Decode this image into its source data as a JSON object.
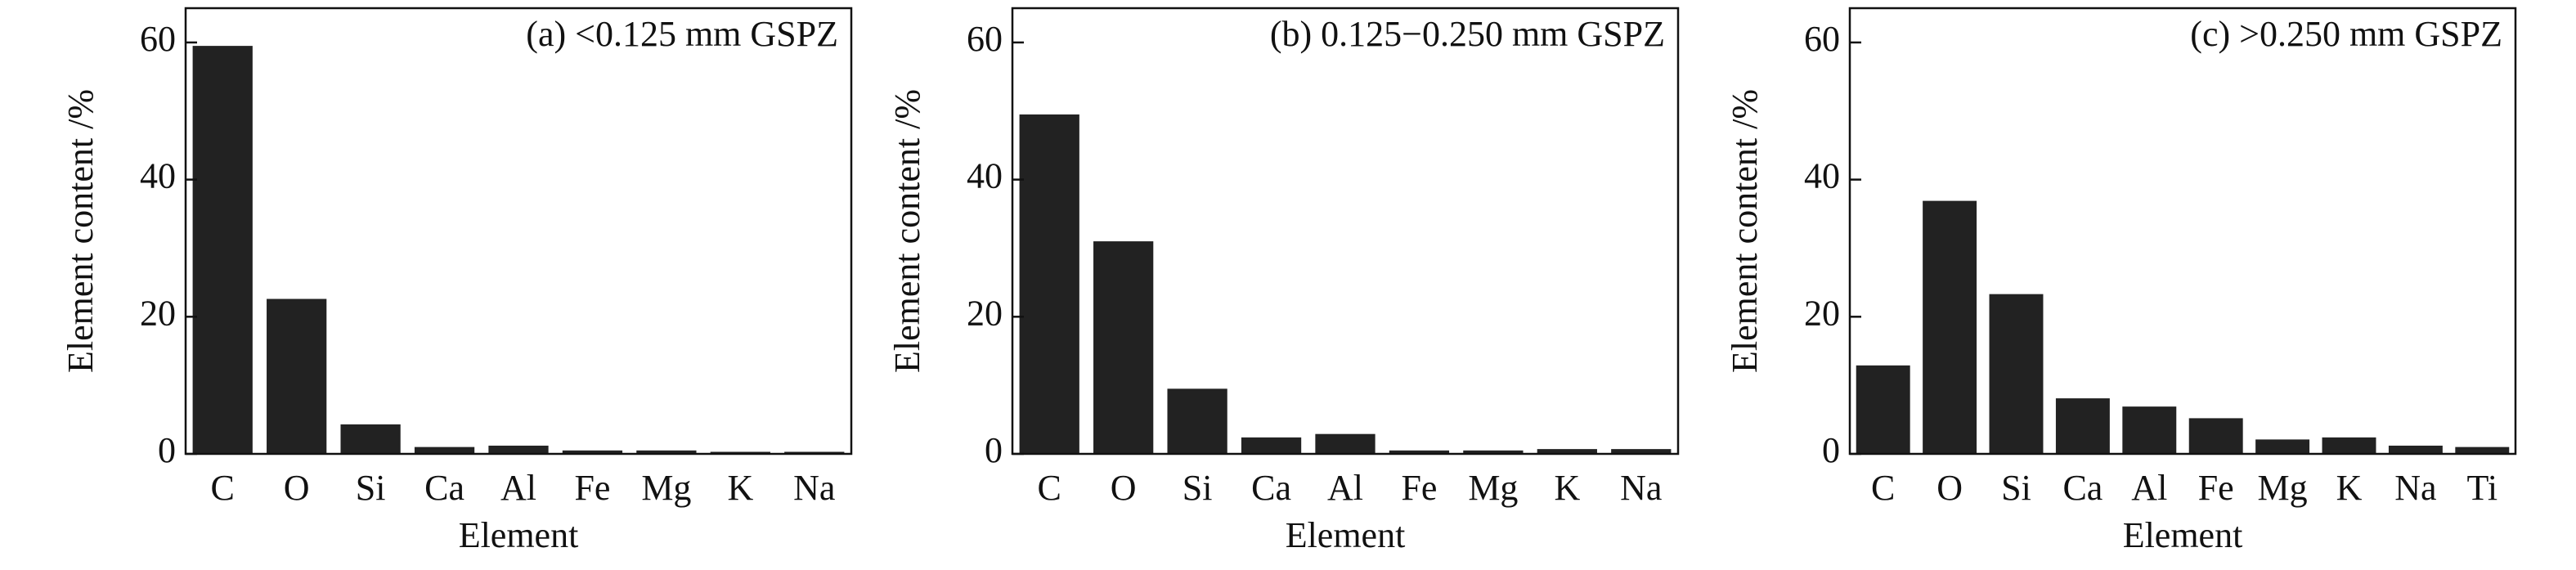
{
  "chart_data": [
    {
      "type": "bar",
      "title": "(a) <0.125 mm GSPZ",
      "xlabel": "Element",
      "ylabel": "Element content /%",
      "categories": [
        "C",
        "O",
        "Si",
        "Ca",
        "Al",
        "Fe",
        "Mg",
        "K",
        "Na"
      ],
      "values": [
        59.5,
        22.6,
        4.3,
        1.0,
        1.2,
        0.5,
        0.5,
        0.3,
        0.3
      ],
      "color": "#222222",
      "ylim": [
        0,
        65
      ],
      "yticks": [
        0,
        20,
        40,
        60
      ],
      "grid": false
    },
    {
      "type": "bar",
      "title": "(b) 0.125−0.250 mm GSPZ",
      "xlabel": "Element",
      "ylabel": "Element content /%",
      "categories": [
        "C",
        "O",
        "Si",
        "Ca",
        "Al",
        "Fe",
        "Mg",
        "K",
        "Na"
      ],
      "values": [
        49.5,
        31.0,
        9.5,
        2.4,
        2.9,
        0.5,
        0.5,
        0.7,
        0.7
      ],
      "color": "#222222",
      "ylim": [
        0,
        65
      ],
      "yticks": [
        0,
        20,
        40,
        60
      ],
      "grid": false
    },
    {
      "type": "bar",
      "title": "(c) >0.250 mm GSPZ",
      "xlabel": "Element",
      "ylabel": "Element content /%",
      "categories": [
        "C",
        "O",
        "Si",
        "Ca",
        "Al",
        "Fe",
        "Mg",
        "K",
        "Na",
        "Ti"
      ],
      "values": [
        12.9,
        36.9,
        23.3,
        8.1,
        6.9,
        5.2,
        2.1,
        2.4,
        1.2,
        1.0
      ],
      "color": "#222222",
      "ylim": [
        0,
        65
      ],
      "yticks": [
        0,
        20,
        40,
        60
      ],
      "grid": false
    }
  ]
}
